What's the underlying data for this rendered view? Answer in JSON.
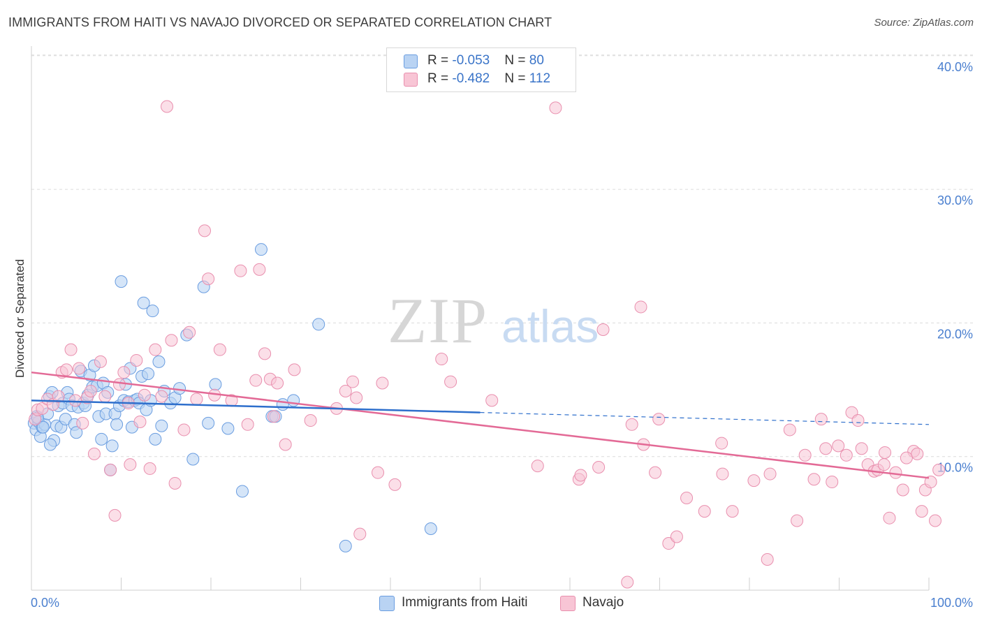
{
  "title": "IMMIGRANTS FROM HAITI VS NAVAJO DIVORCED OR SEPARATED CORRELATION CHART",
  "source": "Source: ZipAtlas.com",
  "watermark": {
    "zip": "ZIP",
    "atlas": "atlas"
  },
  "legend": {
    "series1": {
      "r_label": "R = ",
      "r_value": "-0.053",
      "n_label": "N = ",
      "n_value": "80"
    },
    "series2": {
      "r_label": "R = ",
      "r_value": "-0.482",
      "n_label": "N = ",
      "n_value": "112"
    }
  },
  "colors": {
    "blue_fill": "#b9d3f3",
    "blue_stroke": "#6a9de0",
    "blue_line": "#2e6fcc",
    "pink_fill": "#f8c5d5",
    "pink_stroke": "#e98fae",
    "pink_line": "#e36a96",
    "tick_text": "#4a7fcf",
    "grid": "#dcdcdc"
  },
  "chart_data": {
    "type": "scatter",
    "title": "IMMIGRANTS FROM HAITI VS NAVAJO DIVORCED OR SEPARATED CORRELATION CHART",
    "xlabel": "",
    "ylabel": "Divorced or Separated",
    "xlim": [
      0,
      100
    ],
    "ylim": [
      0,
      40
    ],
    "x_tick_labels": [
      "0.0%",
      "100.0%"
    ],
    "y_ticks": [
      10,
      20,
      30,
      40
    ],
    "y_tick_labels": [
      "10.0%",
      "20.0%",
      "30.0%",
      "40.0%"
    ],
    "grid": true,
    "series": [
      {
        "name": "Immigrants from Haiti",
        "r": -0.053,
        "n": 80,
        "trend": {
          "x0": 0,
          "y0": 14.2,
          "x1": 50,
          "y1": 13.3,
          "dashed_to_x": 100,
          "dashed_to_y": 12.4
        },
        "points": [
          [
            0.3,
            12.5
          ],
          [
            0.5,
            12.0
          ],
          [
            0.6,
            13.0
          ],
          [
            0.8,
            12.6
          ],
          [
            1.0,
            11.5
          ],
          [
            1.2,
            12.2
          ],
          [
            1.5,
            12.4
          ],
          [
            1.8,
            13.2
          ],
          [
            2.0,
            14.5
          ],
          [
            2.3,
            14.8
          ],
          [
            2.5,
            11.2
          ],
          [
            2.8,
            12.3
          ],
          [
            3.0,
            13.8
          ],
          [
            3.3,
            12.2
          ],
          [
            3.5,
            14.0
          ],
          [
            3.8,
            12.8
          ],
          [
            4.0,
            14.8
          ],
          [
            4.2,
            14.3
          ],
          [
            4.5,
            13.8
          ],
          [
            4.8,
            12.4
          ],
          [
            5.0,
            11.8
          ],
          [
            5.2,
            13.7
          ],
          [
            5.5,
            16.4
          ],
          [
            5.8,
            14.0
          ],
          [
            6.0,
            13.8
          ],
          [
            6.3,
            14.6
          ],
          [
            6.5,
            16.1
          ],
          [
            6.8,
            15.2
          ],
          [
            7.0,
            16.8
          ],
          [
            7.3,
            15.3
          ],
          [
            7.5,
            13.0
          ],
          [
            7.8,
            11.3
          ],
          [
            8.0,
            15.5
          ],
          [
            8.3,
            13.2
          ],
          [
            8.5,
            14.8
          ],
          [
            8.8,
            9.0
          ],
          [
            9.0,
            10.8
          ],
          [
            9.3,
            13.2
          ],
          [
            9.5,
            12.4
          ],
          [
            9.8,
            13.8
          ],
          [
            10.0,
            23.1
          ],
          [
            10.3,
            14.2
          ],
          [
            10.5,
            15.4
          ],
          [
            10.8,
            14.1
          ],
          [
            11.0,
            16.6
          ],
          [
            11.2,
            12.2
          ],
          [
            11.5,
            14.2
          ],
          [
            11.8,
            14.3
          ],
          [
            12.0,
            14.0
          ],
          [
            12.3,
            16.0
          ],
          [
            12.5,
            21.5
          ],
          [
            12.8,
            13.5
          ],
          [
            13.0,
            16.2
          ],
          [
            13.3,
            14.2
          ],
          [
            13.5,
            20.9
          ],
          [
            13.8,
            11.3
          ],
          [
            14.2,
            17.1
          ],
          [
            14.5,
            12.3
          ],
          [
            14.8,
            14.9
          ],
          [
            15.5,
            14.0
          ],
          [
            16.0,
            14.4
          ],
          [
            16.5,
            15.1
          ],
          [
            17.3,
            19.1
          ],
          [
            18.0,
            9.8
          ],
          [
            19.2,
            22.7
          ],
          [
            19.7,
            12.5
          ],
          [
            20.5,
            15.4
          ],
          [
            21.9,
            12.1
          ],
          [
            23.5,
            7.4
          ],
          [
            25.6,
            25.5
          ],
          [
            26.8,
            13.0
          ],
          [
            27.2,
            13.0
          ],
          [
            28.0,
            13.9
          ],
          [
            29.2,
            14.2
          ],
          [
            32.0,
            19.9
          ],
          [
            35.0,
            3.3
          ],
          [
            44.5,
            4.6
          ],
          [
            0.7,
            12.9
          ],
          [
            1.3,
            12.2
          ],
          [
            2.1,
            10.9
          ]
        ]
      },
      {
        "name": "Navajo",
        "r": -0.482,
        "n": 112,
        "trend": {
          "x0": 0,
          "y0": 16.3,
          "x1": 100,
          "y1": 8.4
        },
        "points": [
          [
            0.4,
            12.8
          ],
          [
            0.7,
            13.5
          ],
          [
            1.2,
            13.6
          ],
          [
            1.8,
            14.3
          ],
          [
            2.4,
            13.9
          ],
          [
            3.0,
            14.5
          ],
          [
            3.4,
            16.3
          ],
          [
            3.9,
            16.5
          ],
          [
            4.4,
            18.0
          ],
          [
            4.9,
            14.2
          ],
          [
            5.3,
            16.6
          ],
          [
            5.7,
            12.5
          ],
          [
            6.2,
            14.4
          ],
          [
            6.6,
            14.9
          ],
          [
            7.0,
            10.2
          ],
          [
            7.7,
            17.1
          ],
          [
            8.2,
            14.5
          ],
          [
            8.8,
            9.0
          ],
          [
            9.3,
            5.6
          ],
          [
            9.8,
            15.4
          ],
          [
            10.3,
            16.3
          ],
          [
            10.8,
            14.0
          ],
          [
            11.0,
            9.4
          ],
          [
            11.7,
            17.2
          ],
          [
            12.1,
            12.6
          ],
          [
            12.6,
            14.6
          ],
          [
            13.2,
            9.1
          ],
          [
            13.8,
            18.0
          ],
          [
            14.5,
            14.5
          ],
          [
            15.1,
            36.2
          ],
          [
            15.6,
            18.7
          ],
          [
            16.0,
            8.0
          ],
          [
            17.0,
            12.0
          ],
          [
            17.6,
            19.3
          ],
          [
            18.4,
            14.3
          ],
          [
            19.3,
            26.9
          ],
          [
            19.7,
            23.3
          ],
          [
            20.4,
            14.6
          ],
          [
            21.0,
            18.0
          ],
          [
            22.3,
            14.2
          ],
          [
            23.3,
            23.9
          ],
          [
            24.1,
            12.4
          ],
          [
            25.0,
            15.7
          ],
          [
            25.4,
            24.0
          ],
          [
            26.0,
            17.7
          ],
          [
            26.6,
            15.8
          ],
          [
            27.4,
            15.5
          ],
          [
            27.0,
            13.0
          ],
          [
            28.3,
            10.9
          ],
          [
            29.3,
            16.5
          ],
          [
            31.1,
            12.7
          ],
          [
            34.0,
            13.6
          ],
          [
            35.0,
            14.9
          ],
          [
            35.8,
            15.6
          ],
          [
            36.2,
            14.4
          ],
          [
            36.6,
            4.2
          ],
          [
            38.6,
            8.8
          ],
          [
            39.1,
            15.5
          ],
          [
            40.5,
            7.9
          ],
          [
            45.7,
            17.3
          ],
          [
            46.7,
            15.6
          ],
          [
            51.3,
            14.2
          ],
          [
            56.4,
            9.3
          ],
          [
            58.4,
            36.1
          ],
          [
            61.0,
            8.3
          ],
          [
            61.2,
            8.6
          ],
          [
            63.2,
            9.2
          ],
          [
            63.7,
            19.5
          ],
          [
            66.4,
            0.6
          ],
          [
            66.9,
            12.4
          ],
          [
            67.9,
            21.2
          ],
          [
            68.2,
            10.9
          ],
          [
            69.5,
            8.8
          ],
          [
            69.9,
            12.8
          ],
          [
            71.0,
            3.5
          ],
          [
            71.9,
            4.0
          ],
          [
            73.0,
            6.9
          ],
          [
            75.0,
            5.9
          ],
          [
            76.9,
            11.0
          ],
          [
            77.0,
            8.7
          ],
          [
            78.1,
            5.9
          ],
          [
            80.5,
            8.2
          ],
          [
            82.0,
            2.3
          ],
          [
            82.3,
            8.7
          ],
          [
            84.5,
            12.0
          ],
          [
            85.3,
            5.2
          ],
          [
            86.2,
            10.1
          ],
          [
            87.2,
            8.3
          ],
          [
            88.0,
            12.8
          ],
          [
            88.5,
            10.6
          ],
          [
            89.2,
            8.1
          ],
          [
            89.9,
            10.8
          ],
          [
            90.8,
            10.1
          ],
          [
            91.4,
            13.3
          ],
          [
            92.1,
            12.7
          ],
          [
            92.5,
            10.6
          ],
          [
            93.2,
            9.4
          ],
          [
            93.9,
            8.9
          ],
          [
            94.3,
            9.0
          ],
          [
            95.1,
            10.3
          ],
          [
            95.6,
            5.4
          ],
          [
            96.3,
            8.8
          ],
          [
            97.1,
            7.5
          ],
          [
            98.3,
            10.4
          ],
          [
            98.7,
            10.2
          ],
          [
            99.2,
            5.9
          ],
          [
            99.6,
            7.5
          ],
          [
            100.2,
            8.1
          ],
          [
            100.7,
            5.2
          ],
          [
            101.1,
            9.0
          ],
          [
            95.0,
            9.4
          ],
          [
            97.5,
            9.9
          ]
        ]
      }
    ]
  },
  "bottom_legend": {
    "series1": "Immigrants from Haiti",
    "series2": "Navajo"
  }
}
